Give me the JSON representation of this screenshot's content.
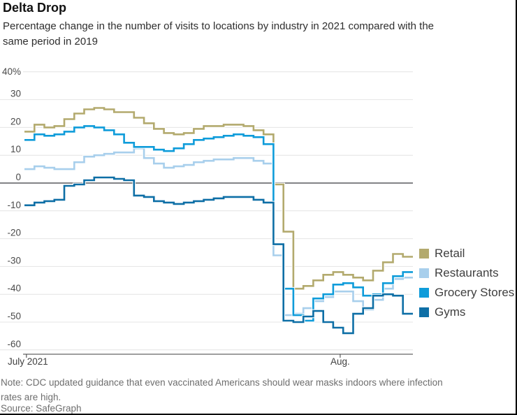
{
  "header": {
    "title": "Delta Drop",
    "subtitle_lines": [
      "Percentage change in the number of visits to locations by industry in 2021 compared with the",
      "same period in 2019"
    ]
  },
  "footer": {
    "note_lines": [
      "Note: CDC updated guidance that even vaccinated Americans should wear masks indoors where infection",
      "rates are high."
    ],
    "source": "Source: SafeGraph"
  },
  "chart_data": {
    "type": "line",
    "style": "step",
    "title": "Delta Drop",
    "subtitle": "Percentage change in the number of visits to locations by industry in 2021 compared with the same period in 2019",
    "grid": true,
    "legend_position": "right",
    "x_axis": {
      "ticks": [
        {
          "label": "July 2021",
          "day_index": 0
        },
        {
          "label": "Aug.",
          "day_index": 31.5
        }
      ],
      "points_are": "daily values, July 2021 into August 2021"
    },
    "y_axis": {
      "min": -60,
      "max": 40,
      "ticks": [
        {
          "v": 40,
          "label": "40%"
        },
        {
          "v": 30,
          "label": "30"
        },
        {
          "v": 20,
          "label": "20"
        },
        {
          "v": 10,
          "label": "10"
        },
        {
          "v": 0,
          "label": "0"
        },
        {
          "v": -10,
          "label": "-10"
        },
        {
          "v": -20,
          "label": "-20"
        },
        {
          "v": -30,
          "label": "-30"
        },
        {
          "v": -40,
          "label": "-40"
        },
        {
          "v": -50,
          "label": "-50"
        },
        {
          "v": -60,
          "label": "-60"
        }
      ]
    },
    "series": [
      {
        "name": "Retail",
        "color": "#b3aa6e",
        "values": [
          18.5,
          21,
          20,
          20.5,
          23,
          25,
          26.5,
          27,
          26.5,
          25.5,
          25.5,
          23.5,
          21.5,
          19.5,
          18,
          17.5,
          18,
          19.5,
          20.5,
          20.5,
          21,
          21,
          20.5,
          19,
          17.5,
          -0.5,
          -17.5,
          -38,
          -37,
          -35,
          -33,
          -32,
          -33,
          -34,
          -35,
          -31.5,
          -28.5,
          -25.5,
          -26.5
        ]
      },
      {
        "name": "Restaurants",
        "color": "#a8cfec",
        "values": [
          5,
          6,
          5.5,
          5,
          5,
          7.5,
          9.5,
          10,
          10.5,
          11,
          11,
          12.5,
          9,
          7,
          5.5,
          6,
          6.5,
          7.5,
          8,
          8.5,
          8.5,
          9,
          9,
          8,
          7,
          -26,
          -47.5,
          -47,
          -45,
          -42.5,
          -41,
          -39,
          -39,
          -42.5,
          -45.5,
          -42,
          -38,
          -34.5,
          -34
        ]
      },
      {
        "name": "Grocery Stores",
        "color": "#0f9cda",
        "values": [
          15.5,
          17.5,
          17,
          17.5,
          18.5,
          20,
          20.5,
          20,
          19,
          17.5,
          14.5,
          13,
          13,
          12,
          11.5,
          12.5,
          14,
          15.5,
          16,
          16.5,
          17,
          17.5,
          17,
          16.5,
          14,
          -22,
          -38,
          -47.5,
          -49.5,
          -41.5,
          -40,
          -36.5,
          -36,
          -37.5,
          -40.5,
          -40,
          -36,
          -33.5,
          -32
        ]
      },
      {
        "name": "Gyms",
        "color": "#0e6fa6",
        "values": [
          -8,
          -7,
          -6.5,
          -6,
          -1,
          -0.5,
          1,
          2,
          2,
          1.5,
          1,
          -4.5,
          -5,
          -6.5,
          -7,
          -7.5,
          -7,
          -6.5,
          -6,
          -5.5,
          -5,
          -5,
          -5,
          -6,
          -7,
          -22,
          -49.5,
          -50,
          -48,
          -46,
          -50,
          -52,
          -54,
          -47,
          -45,
          -40.5,
          -40,
          -40.5,
          -47
        ]
      }
    ]
  }
}
